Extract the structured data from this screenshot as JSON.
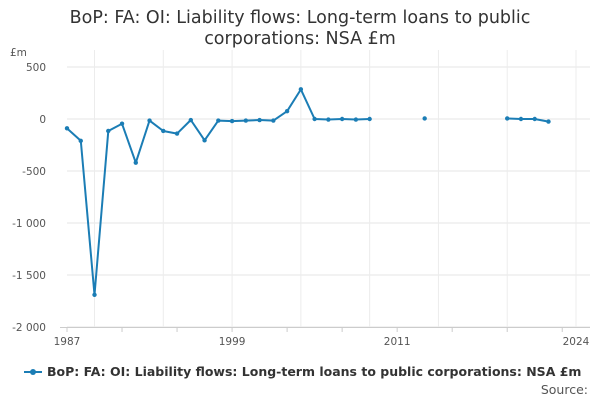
{
  "chart_data": {
    "type": "line",
    "title": "BoP: FA: OI: Liability flows: Long-term loans to public corporations: NSA £m",
    "title_lines": [
      "BoP: FA: OI: Liability flows: Long-term loans to public",
      "corporations: NSA £m"
    ],
    "unit_label": "£m",
    "ylim": [
      -2000,
      500
    ],
    "xlim": [
      1987,
      2024
    ],
    "y_ticks": [
      500,
      0,
      -500,
      -1000,
      -1500,
      -2000
    ],
    "y_tick_labels": [
      "500",
      "0",
      "-500",
      "-1 000",
      "-1 500",
      "-2 000"
    ],
    "x_ticks": [
      1987,
      1999,
      2011,
      2024
    ],
    "x_tick_labels": [
      "1987",
      "1999",
      "2011",
      "2024"
    ],
    "grid": true,
    "legend_position": "bottom",
    "series": [
      {
        "name": "BoP: FA: OI: Liability flows: Long-term loans to public corporations: NSA £m",
        "color": "#1B7DB5",
        "points": [
          [
            1987,
            -90
          ],
          [
            1988,
            -210
          ],
          [
            1989,
            -1690
          ],
          [
            1990,
            -115
          ],
          [
            1991,
            -45
          ],
          [
            1992,
            -420
          ],
          [
            1993,
            -15
          ],
          [
            1994,
            -115
          ],
          [
            1995,
            -140
          ],
          [
            1996,
            -10
          ],
          [
            1997,
            -205
          ],
          [
            1998,
            -15
          ],
          [
            1999,
            -20
          ],
          [
            2000,
            -15
          ],
          [
            2001,
            -10
          ],
          [
            2002,
            -15
          ],
          [
            2003,
            75
          ],
          [
            2004,
            285
          ],
          [
            2005,
            0
          ],
          [
            2006,
            -5
          ],
          [
            2007,
            0
          ],
          [
            2008,
            -5
          ],
          [
            2009,
            0
          ],
          [
            2010,
            null
          ],
          [
            2011,
            null
          ],
          [
            2012,
            null
          ],
          [
            2013,
            5
          ],
          [
            2014,
            null
          ],
          [
            2015,
            null
          ],
          [
            2016,
            null
          ],
          [
            2017,
            null
          ],
          [
            2018,
            null
          ],
          [
            2019,
            5
          ],
          [
            2020,
            0
          ],
          [
            2021,
            0
          ],
          [
            2022,
            -25
          ]
        ]
      }
    ]
  },
  "source_label": "Source:"
}
